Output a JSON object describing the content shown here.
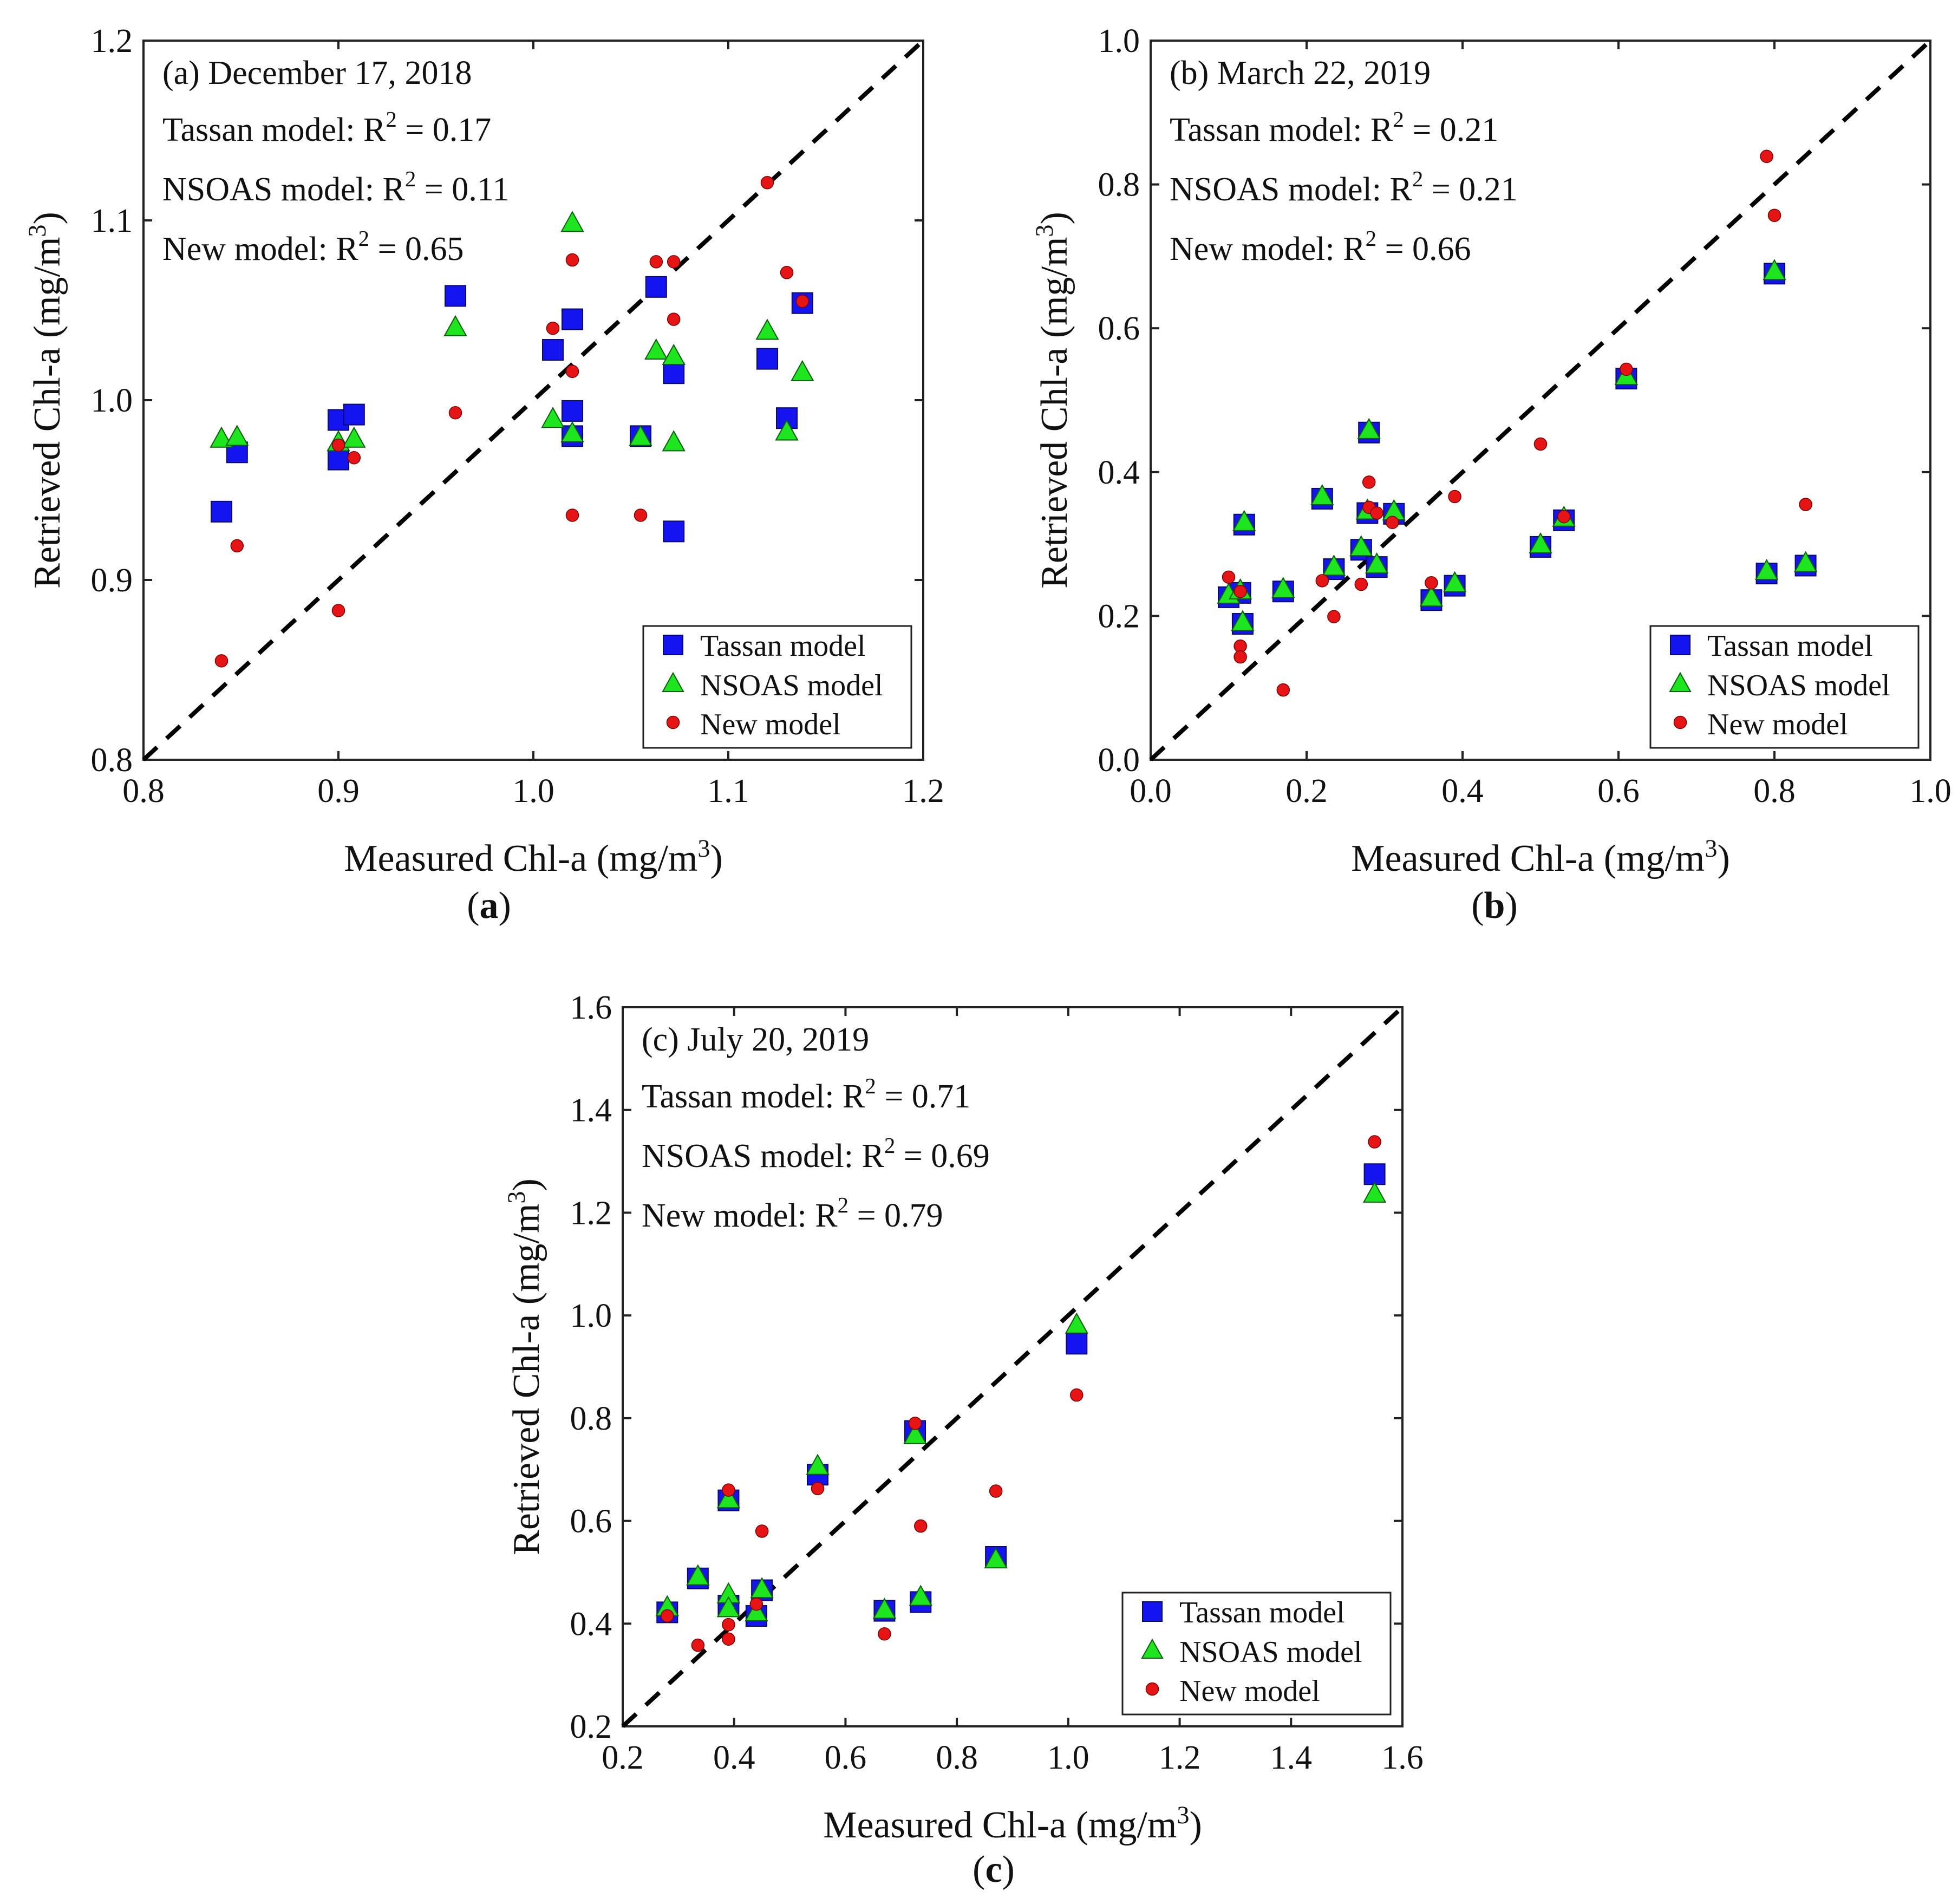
{
  "colors": {
    "tassan": "#1414f0",
    "nsoas": "#1ee61e",
    "new": "#e61414",
    "frame": "#222222",
    "text": "#111111"
  },
  "chart_data": [
    {
      "type": "scatter",
      "panel": "(a)",
      "annotations": [
        "(a) December 17, 2018",
        "Tassan model: R",
        " = 0.17",
        "NSOAS model: R",
        " = 0.11",
        "New model: R",
        " = 0.65"
      ],
      "r2_superscript": "2",
      "xlabel": "Measured Chl-a (mg/m",
      "ylabel": "Retrieved Chl-a (mg/m",
      "unit_superscript": "3",
      "unit_close": ")",
      "xlim": [
        0.8,
        1.2
      ],
      "ylim": [
        0.8,
        1.2
      ],
      "xticks": [
        0.8,
        0.9,
        1.0,
        1.1,
        1.2
      ],
      "yticks": [
        0.8,
        0.9,
        1.0,
        1.1,
        1.2
      ],
      "xtick_labels": [
        "0.8",
        "0.9",
        "1.0",
        "1.1",
        "1.2"
      ],
      "ytick_labels": [
        "0.8",
        "0.9",
        "1.0",
        "1.1",
        "1.2"
      ],
      "reference_line": "1:1",
      "legend": [
        "Tassan model",
        "NSOAS model",
        "New model"
      ],
      "legend_position": "bottom-right",
      "series": [
        {
          "name": "Tassan model",
          "marker": "square",
          "points": [
            [
              0.84,
              0.938
            ],
            [
              0.848,
              0.971
            ],
            [
              0.9,
              0.967
            ],
            [
              0.9,
              0.989
            ],
            [
              0.908,
              0.992
            ],
            [
              0.96,
              1.058
            ],
            [
              1.01,
              1.028
            ],
            [
              1.02,
              1.045
            ],
            [
              1.02,
              0.994
            ],
            [
              1.02,
              0.98
            ],
            [
              1.055,
              0.98
            ],
            [
              1.063,
              1.063
            ],
            [
              1.072,
              1.015
            ],
            [
              1.072,
              0.927
            ],
            [
              1.12,
              1.023
            ],
            [
              1.13,
              0.99
            ],
            [
              1.138,
              1.054
            ]
          ]
        },
        {
          "name": "NSOAS model",
          "marker": "triangle",
          "points": [
            [
              0.84,
              0.978
            ],
            [
              0.848,
              0.979
            ],
            [
              0.9,
              0.976
            ],
            [
              0.908,
              0.978
            ],
            [
              0.96,
              1.04
            ],
            [
              1.01,
              0.989
            ],
            [
              1.02,
              0.981
            ],
            [
              1.02,
              1.098
            ],
            [
              1.055,
              0.979
            ],
            [
              1.063,
              1.027
            ],
            [
              1.072,
              0.976
            ],
            [
              1.072,
              1.024
            ],
            [
              1.12,
              1.038
            ],
            [
              1.13,
              0.982
            ],
            [
              1.138,
              1.015
            ]
          ]
        },
        {
          "name": "New model",
          "marker": "circle",
          "points": [
            [
              0.84,
              0.855
            ],
            [
              0.848,
              0.919
            ],
            [
              0.9,
              0.883
            ],
            [
              0.9,
              0.975
            ],
            [
              0.908,
              0.968
            ],
            [
              0.96,
              0.993
            ],
            [
              1.01,
              1.04
            ],
            [
              1.02,
              1.078
            ],
            [
              1.02,
              1.016
            ],
            [
              1.02,
              0.936
            ],
            [
              1.055,
              0.936
            ],
            [
              1.063,
              1.077
            ],
            [
              1.072,
              1.077
            ],
            [
              1.072,
              1.045
            ],
            [
              1.12,
              1.121
            ],
            [
              1.13,
              1.071
            ],
            [
              1.138,
              1.055
            ]
          ]
        }
      ]
    },
    {
      "type": "scatter",
      "panel": "(b)",
      "annotations": [
        "(b) March 22, 2019",
        "Tassan model: R",
        " = 0.21",
        "NSOAS model: R",
        " = 0.21",
        "New model: R",
        " = 0.66"
      ],
      "r2_superscript": "2",
      "xlabel": "Measured Chl-a (mg/m",
      "ylabel": "Retrieved Chl-a (mg/m",
      "unit_superscript": "3",
      "unit_close": ")",
      "xlim": [
        0.0,
        1.0
      ],
      "ylim": [
        0.0,
        1.0
      ],
      "xticks": [
        0.0,
        0.2,
        0.4,
        0.6,
        0.8,
        1.0
      ],
      "yticks": [
        0.0,
        0.2,
        0.4,
        0.6,
        0.8,
        1.0
      ],
      "xtick_labels": [
        "0.0",
        "0.2",
        "0.4",
        "0.6",
        "0.8",
        "1.0"
      ],
      "ytick_labels": [
        "0.0",
        "0.2",
        "0.4",
        "0.6",
        "0.8",
        "1.0"
      ],
      "reference_line": "1:1",
      "legend": [
        "Tassan model",
        "NSOAS model",
        "New model"
      ],
      "legend_position": "bottom-right",
      "series": [
        {
          "name": "Tassan model",
          "marker": "square",
          "points": [
            [
              0.1,
              0.226
            ],
            [
              0.115,
              0.232
            ],
            [
              0.118,
              0.189
            ],
            [
              0.12,
              0.327
            ],
            [
              0.17,
              0.234
            ],
            [
              0.22,
              0.363
            ],
            [
              0.235,
              0.265
            ],
            [
              0.27,
              0.292
            ],
            [
              0.278,
              0.343
            ],
            [
              0.28,
              0.455
            ],
            [
              0.29,
              0.268
            ],
            [
              0.312,
              0.342
            ],
            [
              0.36,
              0.222
            ],
            [
              0.39,
              0.242
            ],
            [
              0.5,
              0.296
            ],
            [
              0.53,
              0.333
            ],
            [
              0.61,
              0.53
            ],
            [
              0.79,
              0.259
            ],
            [
              0.8,
              0.676
            ],
            [
              0.84,
              0.27
            ]
          ]
        },
        {
          "name": "NSOAS model",
          "marker": "triangle",
          "points": [
            [
              0.1,
              0.228
            ],
            [
              0.115,
              0.234
            ],
            [
              0.118,
              0.19
            ],
            [
              0.12,
              0.329
            ],
            [
              0.17,
              0.236
            ],
            [
              0.22,
              0.365
            ],
            [
              0.235,
              0.267
            ],
            [
              0.27,
              0.294
            ],
            [
              0.278,
              0.345
            ],
            [
              0.28,
              0.457
            ],
            [
              0.29,
              0.27
            ],
            [
              0.312,
              0.344
            ],
            [
              0.36,
              0.224
            ],
            [
              0.39,
              0.244
            ],
            [
              0.5,
              0.298
            ],
            [
              0.53,
              0.335
            ],
            [
              0.61,
              0.532
            ],
            [
              0.79,
              0.261
            ],
            [
              0.8,
              0.678
            ],
            [
              0.84,
              0.272
            ]
          ]
        },
        {
          "name": "New model",
          "marker": "circle",
          "points": [
            [
              0.1,
              0.254
            ],
            [
              0.115,
              0.234
            ],
            [
              0.115,
              0.158
            ],
            [
              0.115,
              0.143
            ],
            [
              0.17,
              0.097
            ],
            [
              0.22,
              0.249
            ],
            [
              0.235,
              0.199
            ],
            [
              0.27,
              0.244
            ],
            [
              0.28,
              0.386
            ],
            [
              0.28,
              0.351
            ],
            [
              0.29,
              0.343
            ],
            [
              0.31,
              0.33
            ],
            [
              0.36,
              0.246
            ],
            [
              0.39,
              0.366
            ],
            [
              0.5,
              0.439
            ],
            [
              0.53,
              0.338
            ],
            [
              0.61,
              0.543
            ],
            [
              0.79,
              0.839
            ],
            [
              0.8,
              0.757
            ],
            [
              0.84,
              0.355
            ]
          ]
        }
      ]
    },
    {
      "type": "scatter",
      "panel": "(c)",
      "annotations": [
        "(c) July 20, 2019",
        "Tassan model: R",
        " = 0.71",
        "NSOAS model: R",
        " = 0.69",
        "New model: R",
        " = 0.79"
      ],
      "r2_superscript": "2",
      "xlabel": "Measured Chl-a (mg/m",
      "ylabel": "Retrieved Chl-a (mg/m",
      "unit_superscript": "3",
      "unit_close": ")",
      "xlim": [
        0.2,
        1.6
      ],
      "ylim": [
        0.2,
        1.6
      ],
      "xticks": [
        0.2,
        0.4,
        0.6,
        0.8,
        1.0,
        1.2,
        1.4,
        1.6
      ],
      "yticks": [
        0.2,
        0.4,
        0.6,
        0.8,
        1.0,
        1.2,
        1.4,
        1.6
      ],
      "xtick_labels": [
        "0.2",
        "0.4",
        "0.6",
        "0.8",
        "1.0",
        "1.2",
        "1.4",
        "1.6"
      ],
      "ytick_labels": [
        "0.2",
        "0.4",
        "0.6",
        "0.8",
        "1.0",
        "1.2",
        "1.4",
        "1.6"
      ],
      "reference_line": "1:1",
      "legend": [
        "Tassan model",
        "NSOAS model",
        "New model"
      ],
      "legend_position": "bottom-right",
      "series": [
        {
          "name": "Tassan model",
          "marker": "square",
          "points": [
            [
              0.28,
              0.422
            ],
            [
              0.335,
              0.488
            ],
            [
              0.39,
              0.64
            ],
            [
              0.39,
              0.435
            ],
            [
              0.44,
              0.415
            ],
            [
              0.45,
              0.465
            ],
            [
              0.55,
              0.69
            ],
            [
              0.67,
              0.425
            ],
            [
              0.725,
              0.775
            ],
            [
              0.735,
              0.442
            ],
            [
              0.87,
              0.53
            ],
            [
              1.015,
              0.945
            ],
            [
              1.55,
              1.275
            ]
          ]
        },
        {
          "name": "NSOAS model",
          "marker": "triangle",
          "points": [
            [
              0.28,
              0.43
            ],
            [
              0.335,
              0.49
            ],
            [
              0.39,
              0.64
            ],
            [
              0.39,
              0.455
            ],
            [
              0.39,
              0.428
            ],
            [
              0.44,
              0.42
            ],
            [
              0.45,
              0.465
            ],
            [
              0.55,
              0.705
            ],
            [
              0.67,
              0.425
            ],
            [
              0.725,
              0.765
            ],
            [
              0.735,
              0.45
            ],
            [
              0.87,
              0.523
            ],
            [
              1.015,
              0.98
            ],
            [
              1.55,
              1.235
            ]
          ]
        },
        {
          "name": "New model",
          "marker": "circle",
          "points": [
            [
              0.28,
              0.415
            ],
            [
              0.335,
              0.358
            ],
            [
              0.39,
              0.66
            ],
            [
              0.39,
              0.398
            ],
            [
              0.39,
              0.37
            ],
            [
              0.44,
              0.438
            ],
            [
              0.45,
              0.58
            ],
            [
              0.55,
              0.663
            ],
            [
              0.67,
              0.38
            ],
            [
              0.725,
              0.79
            ],
            [
              0.735,
              0.59
            ],
            [
              0.87,
              0.658
            ],
            [
              1.015,
              0.845
            ],
            [
              1.55,
              1.338
            ]
          ]
        }
      ]
    }
  ],
  "panel_tags": [
    "a",
    "b",
    "c"
  ]
}
